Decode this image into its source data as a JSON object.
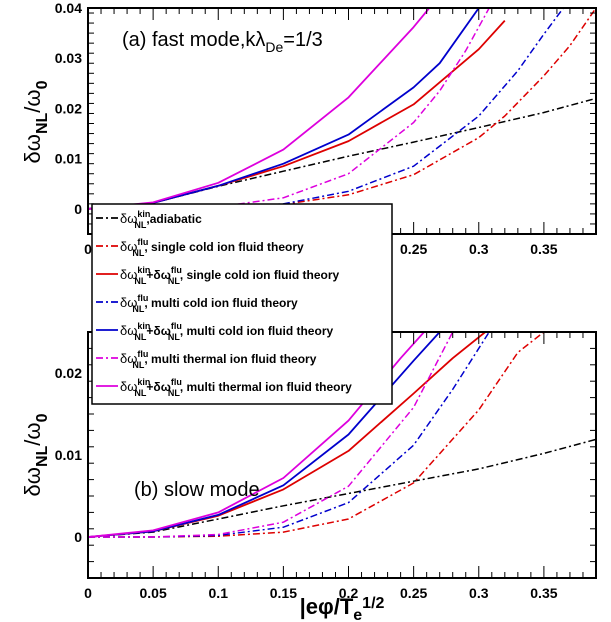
{
  "figure": {
    "xlabel_main": "|eφ/T",
    "xlabel_sub": "e",
    "xlabel_sup": "1/2",
    "ylabel_main": "δω",
    "ylabel_sub": "NL",
    "ylabel_rest": "/ω",
    "ylabel_sub2": "0"
  },
  "legend": {
    "entries": [
      {
        "base": "δω",
        "sup": "kin",
        "sub": "NL",
        "text": ",adiabatic",
        "color": "#000000",
        "dash": "dashdot"
      },
      {
        "base": "δω",
        "sup": "flu",
        "sub": "NL",
        "text": ", single cold ion fluid theory",
        "color": "#dd0000",
        "dash": "dashdot"
      },
      {
        "base": "δω",
        "sup": "kin",
        "sub": "NL",
        "plus": "+δω",
        "sup2": "flu",
        "sub2": "NL",
        "text": ", single cold ion fluid theory",
        "color": "#dd0000",
        "dash": "solid"
      },
      {
        "base": "δω",
        "sup": "flu",
        "sub": "NL",
        "text": ", multi cold ion fluid theory",
        "color": "#0000cc",
        "dash": "dashdot"
      },
      {
        "base": "δω",
        "sup": "kin",
        "sub": "NL",
        "plus": "+δω",
        "sup2": "flu",
        "sub2": "NL",
        "text": ", multi cold ion fluid theory",
        "color": "#0000cc",
        "dash": "solid"
      },
      {
        "base": "δω",
        "sup": "flu",
        "sub": "NL",
        "text": ", multi thermal ion fluid theory",
        "color": "#dd00dd",
        "dash": "dashdot"
      },
      {
        "base": "δω",
        "sup": "kin",
        "sub": "NL",
        "plus": "+δω",
        "sup2": "flu",
        "sub2": "NL",
        "text": ", multi thermal ion fluid theory",
        "color": "#dd00dd",
        "dash": "solid"
      }
    ]
  },
  "chart_data": [
    {
      "type": "line",
      "annotation": "(a) fast mode,kλ",
      "annotation_sub": "De",
      "annotation_rest": "=1/3",
      "xlim": [
        0,
        0.39
      ],
      "ylim": [
        -0.005,
        0.04
      ],
      "xticks": [
        "0",
        "0.05",
        "0.1",
        "0.15",
        "0.2",
        "0.25",
        "0.3",
        "0.35"
      ],
      "xtick_values": [
        0,
        0.05,
        0.1,
        0.15,
        0.2,
        0.25,
        0.3,
        0.35
      ],
      "yticks": [
        "0",
        "0.01",
        "0.02",
        "0.03",
        "0.04"
      ],
      "ytick_values": [
        0,
        0.01,
        0.02,
        0.03,
        0.04
      ],
      "series": [
        {
          "color": "#000000",
          "dash": "dashdot",
          "x": [
            0,
            0.05,
            0.1,
            0.15,
            0.2,
            0.25,
            0.3,
            0.35,
            0.39
          ],
          "y": [
            0,
            0.0012,
            0.0045,
            0.0075,
            0.0105,
            0.0133,
            0.0162,
            0.0192,
            0.022
          ]
        },
        {
          "color": "#dd0000",
          "dash": "dashdot",
          "x": [
            0,
            0.05,
            0.1,
            0.15,
            0.2,
            0.25,
            0.3,
            0.32,
            0.35,
            0.37,
            0.39
          ],
          "y": [
            0,
            0,
            0.0002,
            0.0009,
            0.0028,
            0.0068,
            0.0142,
            0.0185,
            0.0265,
            0.0325,
            0.04
          ]
        },
        {
          "color": "#dd0000",
          "dash": "solid",
          "x": [
            0,
            0.05,
            0.1,
            0.15,
            0.2,
            0.25,
            0.3,
            0.32
          ],
          "y": [
            0,
            0.0012,
            0.0046,
            0.0085,
            0.0135,
            0.0208,
            0.0318,
            0.0375
          ]
        },
        {
          "color": "#0000cc",
          "dash": "dashdot",
          "x": [
            0,
            0.05,
            0.1,
            0.15,
            0.2,
            0.25,
            0.3,
            0.33,
            0.35,
            0.365
          ],
          "y": [
            0,
            0,
            0.0002,
            0.001,
            0.0035,
            0.0085,
            0.0185,
            0.0275,
            0.0348,
            0.04
          ]
        },
        {
          "color": "#0000cc",
          "dash": "solid",
          "x": [
            0,
            0.05,
            0.1,
            0.15,
            0.2,
            0.25,
            0.27,
            0.3
          ],
          "y": [
            0,
            0.0012,
            0.0046,
            0.009,
            0.0148,
            0.0242,
            0.029,
            0.04
          ]
        },
        {
          "color": "#dd00dd",
          "dash": "dashdot",
          "x": [
            0,
            0.05,
            0.1,
            0.15,
            0.2,
            0.25,
            0.27,
            0.29,
            0.308
          ],
          "y": [
            0,
            0,
            0.0004,
            0.0022,
            0.007,
            0.0172,
            0.0235,
            0.0315,
            0.04
          ]
        },
        {
          "color": "#dd00dd",
          "dash": "solid",
          "x": [
            0,
            0.05,
            0.1,
            0.15,
            0.2,
            0.25,
            0.262
          ],
          "y": [
            0,
            0.0013,
            0.0052,
            0.0118,
            0.0222,
            0.0362,
            0.04
          ]
        }
      ]
    },
    {
      "type": "line",
      "annotation": "(b) slow mode",
      "xlim": [
        0,
        0.39
      ],
      "ylim": [
        -0.005,
        0.025
      ],
      "xticks": [
        "0",
        "0.05",
        "0.1",
        "0.15",
        "0.2",
        "0.25",
        "0.3",
        "0.35"
      ],
      "xtick_values": [
        0,
        0.05,
        0.1,
        0.15,
        0.2,
        0.25,
        0.3,
        0.35
      ],
      "yticks": [
        "0",
        "0.01",
        "0.02"
      ],
      "ytick_values": [
        0,
        0.01,
        0.02
      ],
      "series": [
        {
          "color": "#000000",
          "dash": "dashdot",
          "x": [
            0,
            0.05,
            0.1,
            0.15,
            0.2,
            0.25,
            0.3,
            0.35,
            0.39
          ],
          "y": [
            0,
            0.0006,
            0.0022,
            0.0038,
            0.0053,
            0.0068,
            0.0083,
            0.0102,
            0.0119
          ]
        },
        {
          "color": "#dd0000",
          "dash": "dashdot",
          "x": [
            0,
            0.05,
            0.1,
            0.15,
            0.2,
            0.25,
            0.3,
            0.33,
            0.35
          ],
          "y": [
            0,
            0,
            0.0001,
            0.0006,
            0.0022,
            0.0066,
            0.0155,
            0.0225,
            0.025
          ]
        },
        {
          "color": "#dd0000",
          "dash": "solid",
          "x": [
            0,
            0.05,
            0.1,
            0.15,
            0.2,
            0.25,
            0.28,
            0.305
          ],
          "y": [
            0,
            0.0007,
            0.0026,
            0.0058,
            0.0105,
            0.0175,
            0.0218,
            0.025
          ]
        },
        {
          "color": "#0000cc",
          "dash": "dashdot",
          "x": [
            0,
            0.05,
            0.1,
            0.15,
            0.2,
            0.25,
            0.28,
            0.308
          ],
          "y": [
            0,
            0,
            0.0002,
            0.0012,
            0.0042,
            0.0112,
            0.018,
            0.025
          ]
        },
        {
          "color": "#0000cc",
          "dash": "solid",
          "x": [
            0,
            0.05,
            0.1,
            0.15,
            0.2,
            0.25,
            0.27
          ],
          "y": [
            0,
            0.0007,
            0.0027,
            0.0063,
            0.0125,
            0.0215,
            0.025
          ]
        },
        {
          "color": "#dd00dd",
          "dash": "dashdot",
          "x": [
            0,
            0.05,
            0.1,
            0.15,
            0.2,
            0.25,
            0.28
          ],
          "y": [
            0,
            0,
            0.0003,
            0.0018,
            0.0062,
            0.0158,
            0.025
          ]
        },
        {
          "color": "#dd00dd",
          "dash": "solid",
          "x": [
            0,
            0.05,
            0.1,
            0.15,
            0.2,
            0.24,
            0.258
          ],
          "y": [
            0,
            0.0008,
            0.003,
            0.0072,
            0.0142,
            0.0218,
            0.025
          ]
        }
      ]
    }
  ]
}
